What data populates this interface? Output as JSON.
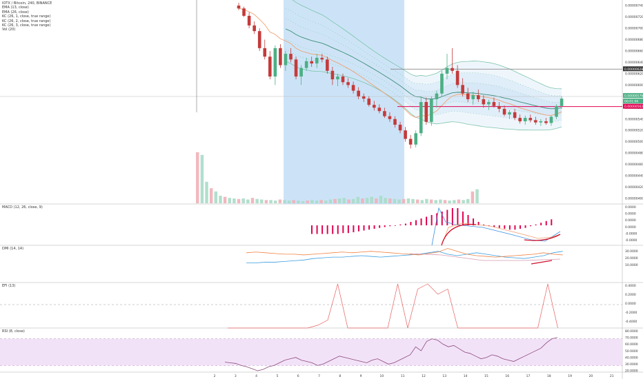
{
  "header": {
    "symbol_line": "IOTX / Bitcoin, 240, BINANCE",
    "indicators": [
      "EMA (13, close)",
      "EMA (26, close)",
      "KC (26, 1, close, true range)",
      "KC (26, 2, close, true range)",
      "KC (26, 3, close, true range)",
      "Vol (20)"
    ]
  },
  "panes": {
    "macd_label": "MACD (12, 26, close, 9)",
    "dmi_label": "DMI (14, 14)",
    "efi_label": "EFI (13)",
    "rsi_label": "RSI (8, close)"
  },
  "colors": {
    "up": "#4caf84",
    "down": "#c43a3a",
    "ema13": "#f0a070",
    "ema26": "#3c8c78",
    "kc_line": "#7cc3a8",
    "kc_fill": "#cfe4f6",
    "highlight_fill": "#bfdcf5",
    "red_line": "#e0004f",
    "macd_hist": "#e0004f",
    "macd_line": "#3a8fe0",
    "dmi_plus": "#3a9ee0",
    "dmi_minus": "#f08040",
    "rsi_line": "#8a4a7a",
    "rsi_band": "#f2e2f8",
    "efi_line": "#e86060"
  },
  "chart_data": [
    {
      "type": "candlestick",
      "title": "IOTX / Bitcoin, 240, BINANCE",
      "x_ticks": [
        "2",
        "3",
        "4",
        "5",
        "6",
        "7",
        "8",
        "9",
        "10",
        "11",
        "12",
        "13",
        "14",
        "15",
        "16",
        "17",
        "18",
        "19",
        "20",
        "21"
      ],
      "y_ticks": [
        "0.00000740",
        "0.00000720",
        "0.00000700",
        "0.00000680",
        "0.00000660",
        "0.00000640",
        "0.00000620",
        "0.00000600",
        "0.00000580",
        "0.00000560",
        "0.00000540",
        "0.00000520",
        "0.00000500",
        "0.00000480",
        "0.00000460",
        "0.00000440",
        "0.00000420",
        "0.00000400"
      ],
      "ylim": [
        4e-06,
        7.45e-06
      ],
      "price_tags": {
        "last": "0.00000576",
        "countdown": "00:01:06",
        "line": "0.00000562",
        "level": "0.00000628"
      },
      "candles": [
        {
          "o": 740,
          "h": 745,
          "l": 732,
          "c": 735
        },
        {
          "o": 735,
          "h": 738,
          "l": 720,
          "c": 722
        },
        {
          "o": 722,
          "h": 728,
          "l": 700,
          "c": 705
        },
        {
          "o": 705,
          "h": 712,
          "l": 690,
          "c": 695
        },
        {
          "o": 695,
          "h": 700,
          "l": 660,
          "c": 665
        },
        {
          "o": 665,
          "h": 680,
          "l": 645,
          "c": 650
        },
        {
          "o": 650,
          "h": 660,
          "l": 610,
          "c": 615
        },
        {
          "o": 615,
          "h": 670,
          "l": 600,
          "c": 665
        },
        {
          "o": 665,
          "h": 672,
          "l": 630,
          "c": 635
        },
        {
          "o": 635,
          "h": 660,
          "l": 625,
          "c": 655
        },
        {
          "o": 655,
          "h": 665,
          "l": 640,
          "c": 645
        },
        {
          "o": 645,
          "h": 650,
          "l": 610,
          "c": 615
        },
        {
          "o": 615,
          "h": 635,
          "l": 600,
          "c": 630
        },
        {
          "o": 630,
          "h": 648,
          "l": 625,
          "c": 642
        },
        {
          "o": 642,
          "h": 650,
          "l": 632,
          "c": 638
        },
        {
          "o": 638,
          "h": 655,
          "l": 630,
          "c": 648
        },
        {
          "o": 648,
          "h": 655,
          "l": 640,
          "c": 645
        },
        {
          "o": 645,
          "h": 650,
          "l": 620,
          "c": 625
        },
        {
          "o": 625,
          "h": 632,
          "l": 600,
          "c": 610
        },
        {
          "o": 610,
          "h": 620,
          "l": 598,
          "c": 615
        },
        {
          "o": 615,
          "h": 620,
          "l": 600,
          "c": 605
        },
        {
          "o": 605,
          "h": 612,
          "l": 595,
          "c": 600
        },
        {
          "o": 600,
          "h": 606,
          "l": 585,
          "c": 590
        },
        {
          "o": 590,
          "h": 596,
          "l": 575,
          "c": 580
        },
        {
          "o": 580,
          "h": 585,
          "l": 570,
          "c": 576
        },
        {
          "o": 576,
          "h": 580,
          "l": 562,
          "c": 565
        },
        {
          "o": 565,
          "h": 572,
          "l": 555,
          "c": 560
        },
        {
          "o": 560,
          "h": 566,
          "l": 550,
          "c": 554
        },
        {
          "o": 554,
          "h": 560,
          "l": 542,
          "c": 545
        },
        {
          "o": 545,
          "h": 552,
          "l": 535,
          "c": 540
        },
        {
          "o": 540,
          "h": 545,
          "l": 525,
          "c": 530
        },
        {
          "o": 530,
          "h": 535,
          "l": 515,
          "c": 520
        },
        {
          "o": 520,
          "h": 526,
          "l": 500,
          "c": 505
        },
        {
          "o": 505,
          "h": 512,
          "l": 488,
          "c": 495
        },
        {
          "o": 495,
          "h": 520,
          "l": 490,
          "c": 515
        },
        {
          "o": 515,
          "h": 580,
          "l": 510,
          "c": 570
        },
        {
          "o": 570,
          "h": 578,
          "l": 530,
          "c": 535
        },
        {
          "o": 535,
          "h": 580,
          "l": 528,
          "c": 575
        },
        {
          "o": 575,
          "h": 590,
          "l": 560,
          "c": 585
        },
        {
          "o": 585,
          "h": 625,
          "l": 580,
          "c": 620
        },
        {
          "o": 620,
          "h": 655,
          "l": 610,
          "c": 630
        },
        {
          "o": 630,
          "h": 665,
          "l": 620,
          "c": 625
        },
        {
          "o": 625,
          "h": 635,
          "l": 595,
          "c": 600
        },
        {
          "o": 600,
          "h": 612,
          "l": 580,
          "c": 585
        },
        {
          "o": 585,
          "h": 595,
          "l": 570,
          "c": 575
        },
        {
          "o": 575,
          "h": 588,
          "l": 565,
          "c": 582
        },
        {
          "o": 582,
          "h": 592,
          "l": 570,
          "c": 575
        },
        {
          "o": 575,
          "h": 582,
          "l": 560,
          "c": 566
        },
        {
          "o": 566,
          "h": 574,
          "l": 556,
          "c": 570
        },
        {
          "o": 570,
          "h": 578,
          "l": 560,
          "c": 563
        },
        {
          "o": 563,
          "h": 570,
          "l": 552,
          "c": 558
        },
        {
          "o": 558,
          "h": 564,
          "l": 545,
          "c": 548
        },
        {
          "o": 548,
          "h": 556,
          "l": 540,
          "c": 552
        },
        {
          "o": 552,
          "h": 558,
          "l": 538,
          "c": 542
        },
        {
          "o": 542,
          "h": 548,
          "l": 532,
          "c": 536
        },
        {
          "o": 536,
          "h": 546,
          "l": 530,
          "c": 542
        },
        {
          "o": 542,
          "h": 548,
          "l": 534,
          "c": 538
        },
        {
          "o": 538,
          "h": 544,
          "l": 530,
          "c": 534
        },
        {
          "o": 534,
          "h": 540,
          "l": 528,
          "c": 536
        },
        {
          "o": 536,
          "h": 542,
          "l": 530,
          "c": 533
        },
        {
          "o": 533,
          "h": 546,
          "l": 528,
          "c": 544
        },
        {
          "o": 544,
          "h": 566,
          "l": 540,
          "c": 563
        },
        {
          "o": 563,
          "h": 580,
          "l": 558,
          "c": 576
        }
      ]
    },
    {
      "type": "bar",
      "title": "Vol (20)",
      "values": [
        95,
        90,
        40,
        28,
        22,
        14,
        12,
        10,
        9,
        8,
        9,
        7,
        10,
        8,
        7,
        6,
        6,
        5,
        7,
        6,
        5,
        6,
        5,
        4,
        5,
        6,
        5,
        6,
        5,
        7,
        8,
        9,
        10,
        7,
        8,
        12,
        9,
        10,
        12,
        9,
        14,
        10,
        9,
        8,
        7,
        8,
        9,
        8,
        7,
        6,
        8,
        7,
        6,
        7,
        6,
        5,
        6,
        7,
        6,
        8,
        22,
        26
      ]
    },
    {
      "type": "bar",
      "title": "MACD (12, 26, close, 9)",
      "y_ticks": [
        "0.0000",
        "0.0000",
        "0.0000",
        "0.0000",
        "-0.0000",
        "-0.0000"
      ],
      "values": [
        -10,
        -10,
        -10,
        -10,
        -10,
        -10,
        -9,
        -9,
        -8,
        -7,
        -6,
        -5,
        -4,
        -3,
        -2,
        -1,
        0,
        1,
        2,
        4,
        6,
        8,
        10,
        12,
        14,
        16,
        18,
        20,
        20,
        16,
        12,
        8,
        4,
        1,
        -1,
        -2,
        -3,
        -4,
        -5,
        -5,
        -4,
        -3,
        -1,
        1,
        3,
        5,
        7
      ]
    },
    {
      "type": "line",
      "title": "DMI (14, 14)",
      "y_ticks": [
        "30.0000",
        "20.0000",
        "10.0000"
      ],
      "series": [
        {
          "values": [
            10,
            10,
            11,
            11,
            12,
            13,
            14,
            16,
            17,
            18,
            18,
            19,
            20,
            19,
            18,
            19,
            20,
            21,
            22,
            24,
            26,
            22,
            20,
            22,
            24,
            22,
            20,
            18,
            17,
            16,
            18,
            20,
            24,
            26
          ]
        },
        {
          "values": [
            24,
            25,
            24,
            23,
            22,
            22,
            21,
            22,
            23,
            24,
            25,
            24,
            25,
            26,
            25,
            24,
            23,
            22,
            21,
            23,
            25,
            30,
            26,
            22,
            20,
            19,
            18,
            19,
            20,
            21,
            22,
            24,
            22,
            21
          ]
        }
      ]
    },
    {
      "type": "line",
      "title": "EFI (13)",
      "y_ticks": [
        "0.4000",
        "0.2000",
        "0.0000",
        "-0.2000",
        "-0.4000"
      ],
      "values": [
        -0.5,
        -0.5,
        -0.5,
        -0.5,
        -0.5,
        -0.5,
        -0.5,
        -0.5,
        -0.5,
        -0.4,
        -0.3,
        0.5,
        -0.5,
        -0.5,
        -0.5,
        -0.5,
        -0.5,
        0.5,
        -0.5,
        0.3,
        0.4,
        0.2,
        0.3,
        -0.5,
        -0.5,
        -0.5,
        -0.5,
        -0.5,
        -0.5,
        -0.5,
        -0.5,
        -0.5,
        0.5,
        -0.5
      ]
    },
    {
      "type": "line",
      "title": "RSI (8, close)",
      "y_ticks": [
        "80.0000",
        "70.0000",
        "60.0000",
        "50.0000",
        "40.0000",
        "30.0000",
        "20.0000"
      ],
      "values": [
        35,
        34,
        33,
        30,
        28,
        25,
        22,
        24,
        28,
        30,
        34,
        38,
        40,
        42,
        38,
        36,
        34,
        30,
        32,
        36,
        40,
        44,
        42,
        40,
        38,
        36,
        34,
        38,
        40,
        36,
        32,
        34,
        38,
        42,
        46,
        58,
        52,
        66,
        70,
        68,
        62,
        58,
        60,
        55,
        50,
        48,
        44,
        40,
        42,
        46,
        44,
        40,
        38,
        36,
        40,
        44,
        48,
        52,
        56,
        64,
        70,
        72
      ]
    }
  ]
}
